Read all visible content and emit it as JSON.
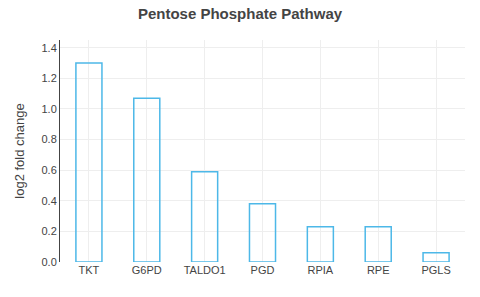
{
  "chart_data": {
    "type": "bar",
    "title": "Pentose Phosphate Pathway",
    "categories": [
      "TKT",
      "G6PD",
      "TALDO1",
      "PGD",
      "RPIA",
      "RPE",
      "PGLS"
    ],
    "values": [
      1.3,
      1.07,
      0.59,
      0.38,
      0.23,
      0.23,
      0.06
    ],
    "color": "#4db8e8",
    "ylabel": "log2 fold change",
    "ylim": [
      0,
      1.45
    ],
    "yticks": [
      {
        "value": 0.0,
        "label": "0.0"
      },
      0.2,
      0.4,
      0.6,
      0.8,
      {
        "value": 1.0,
        "label": "1.0"
      },
      1.2,
      1.4
    ],
    "grid": true
  }
}
